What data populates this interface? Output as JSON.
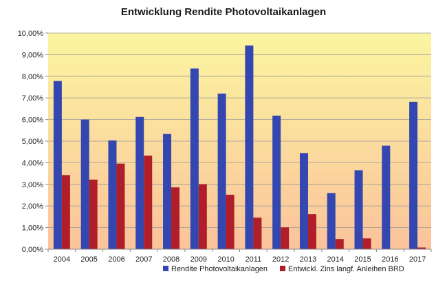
{
  "chart_data": {
    "type": "bar",
    "title": "Entwicklung Rendite Photovoltaikanlagen",
    "xlabel": "",
    "ylabel": "",
    "categories": [
      "2004",
      "2005",
      "2006",
      "2007",
      "2008",
      "2009",
      "2010",
      "2011",
      "2012",
      "2013",
      "2014",
      "2015",
      "2016",
      "2017"
    ],
    "y_ticks": [
      "0,00%",
      "1,00%",
      "2,00%",
      "3,00%",
      "4,00%",
      "5,00%",
      "6,00%",
      "7,00%",
      "8,00%",
      "9,00%",
      "10,00%"
    ],
    "ylim": [
      0,
      10
    ],
    "grid": true,
    "legend_position": "bottom-right",
    "series": [
      {
        "name": "Rendite Photovoltaikanlagen",
        "color": "#3446b0",
        "values": [
          7.78,
          6.0,
          5.03,
          6.12,
          5.33,
          8.36,
          7.2,
          9.42,
          6.18,
          4.45,
          2.6,
          3.65,
          4.79,
          6.82
        ]
      },
      {
        "name": "Entwickl. Zins langf. Anleihen BRD",
        "color": "#b01e2a",
        "values": [
          3.43,
          3.22,
          3.96,
          4.33,
          2.86,
          3.01,
          2.52,
          1.46,
          1.01,
          1.62,
          0.47,
          0.5,
          0.0,
          0.08
        ]
      }
    ],
    "background_gradient": [
      "#fbf5a0",
      "#fbc39b"
    ]
  }
}
